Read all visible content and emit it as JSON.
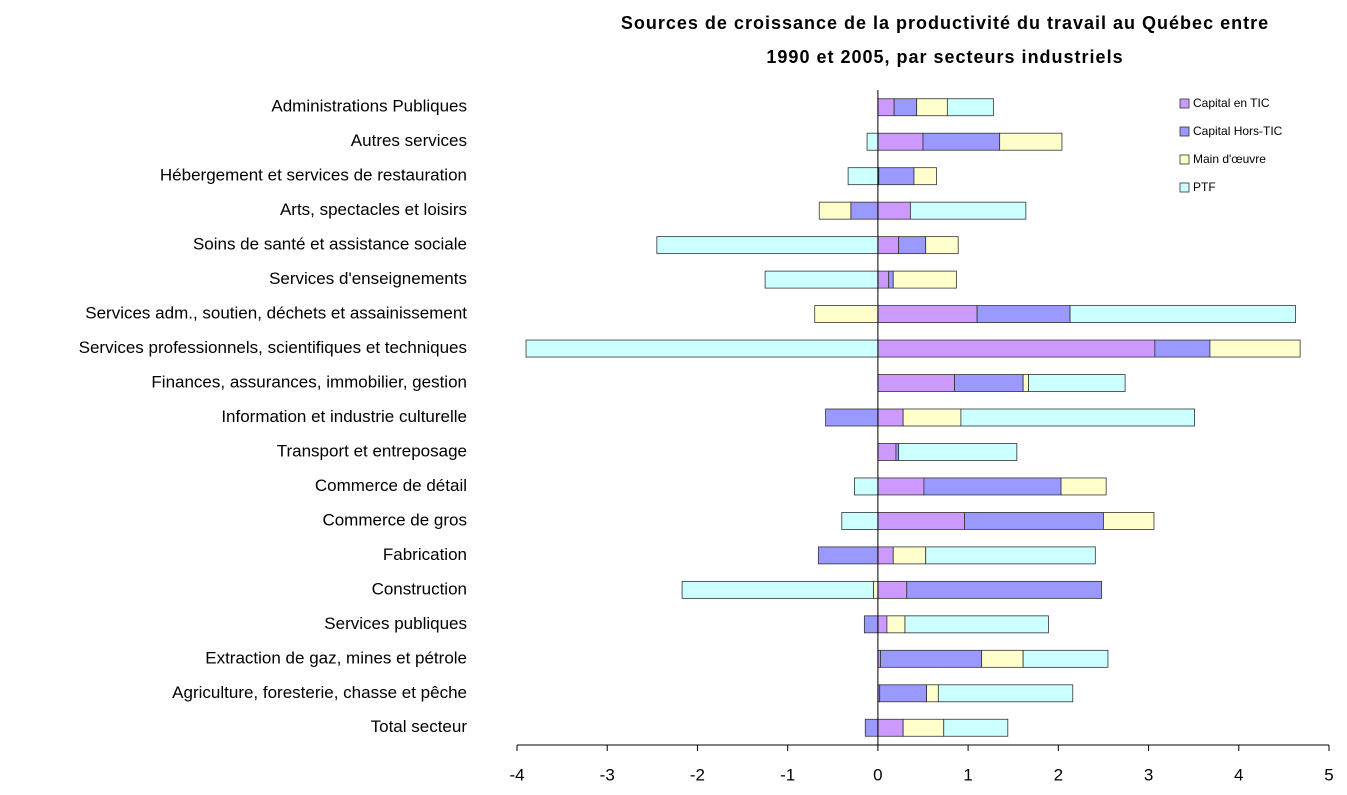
{
  "chart_data": {
    "type": "stacked-barh",
    "title": [
      "Sources de croissance de la productivité du travail au Québec entre",
      "1990 et 2005, par secteurs industriels"
    ],
    "categories": [
      "Administrations Publiques",
      "Autres services",
      "Hébergement et services de restauration",
      "Arts, spectacles et loisirs",
      "Soins de santé et assistance sociale",
      "Services d'enseignements",
      "Services adm., soutien, déchets et assainissement",
      "Services professionnels, scientifiques et techniques",
      "Finances, assurances, immobilier, gestion",
      "Information et industrie culturelle",
      "Transport et entreposage",
      "Commerce de détail",
      "Commerce de gros",
      "Fabrication",
      "Construction",
      "Services publiques",
      "Extraction de gaz, mines et pétrole",
      "Agriculture, foresterie, chasse et pêche",
      "Total secteur"
    ],
    "series": [
      {
        "name": "Capital en TIC",
        "color": "#cc99ff",
        "values": [
          0.18,
          0.5,
          0.01,
          0.36,
          0.23,
          0.12,
          1.1,
          3.07,
          0.85,
          0.28,
          0.2,
          0.51,
          0.96,
          0.17,
          0.32,
          0.1,
          0.03,
          0.02,
          0.28
        ]
      },
      {
        "name": "Capital Hors-TIC",
        "color": "#9999ff",
        "values": [
          0.25,
          0.85,
          0.39,
          -0.3,
          0.3,
          0.05,
          1.03,
          0.61,
          0.76,
          -0.58,
          0.03,
          1.52,
          1.54,
          -0.66,
          2.16,
          -0.15,
          1.12,
          0.52,
          -0.14
        ]
      },
      {
        "name": "Main d'œuvre",
        "color": "#ffffcc",
        "values": [
          0.34,
          0.69,
          0.25,
          -0.35,
          0.36,
          0.7,
          -0.7,
          1.0,
          0.06,
          0.64,
          0,
          0.5,
          0.56,
          0.36,
          -0.05,
          0.2,
          0.46,
          0.13,
          0.45
        ]
      },
      {
        "name": "PTF",
        "color": "#ccffff",
        "values": [
          0.51,
          -0.12,
          -0.33,
          1.28,
          -2.45,
          -1.25,
          2.5,
          -3.9,
          1.07,
          2.59,
          1.31,
          -0.26,
          -0.4,
          1.88,
          -2.12,
          1.59,
          0.94,
          1.49,
          0.71
        ]
      }
    ],
    "xlim": [
      -4,
      5
    ],
    "xticks": [
      -4,
      -3,
      -2,
      -1,
      0,
      1,
      2,
      3,
      4,
      5
    ],
    "legend": "upper right"
  }
}
